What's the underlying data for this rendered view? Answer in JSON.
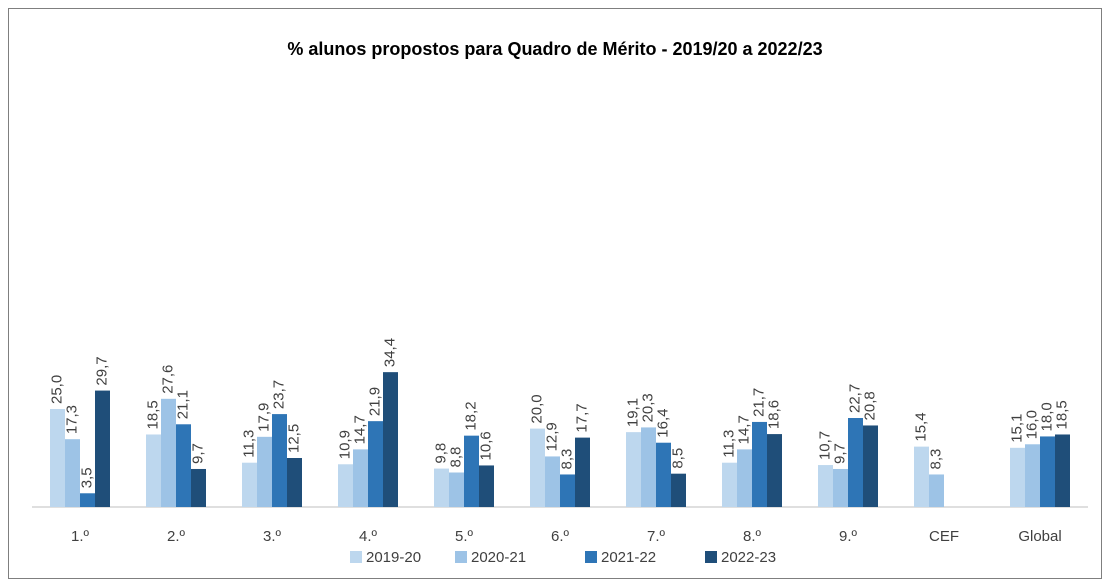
{
  "chart_data": {
    "type": "bar",
    "title": "% alunos propostos para Quadro de Mérito - 2019/20 a 2022/23",
    "categories": [
      "1.º",
      "2.º",
      "3.º",
      "4.º",
      "5.º",
      "6.º",
      "7.º",
      "8.º",
      "9.º",
      "CEF",
      "Global"
    ],
    "ylim": [
      0,
      100
    ],
    "series": [
      {
        "name": "2019-20",
        "color": "#bdd7ee",
        "values": [
          25.0,
          18.5,
          11.3,
          10.9,
          9.8,
          20.0,
          19.1,
          11.3,
          10.7,
          15.4,
          15.1
        ],
        "value_labels": [
          "25,0",
          "18,5",
          "11,3",
          "10,9",
          "9,8",
          "20,0",
          "19,1",
          "11,3",
          "10,7",
          "15,4",
          "15,1"
        ]
      },
      {
        "name": "2020-21",
        "color": "#9dc3e6",
        "values": [
          17.3,
          27.6,
          17.9,
          14.7,
          8.8,
          12.9,
          20.3,
          14.7,
          9.7,
          8.3,
          16.0
        ],
        "value_labels": [
          "17,3",
          "27,6",
          "17,9",
          "14,7",
          "8,8",
          "12,9",
          "20,3",
          "14,7",
          "9,7",
          "8,3",
          "16,0"
        ]
      },
      {
        "name": "2021-22",
        "color": "#2e75b6",
        "values": [
          3.5,
          21.1,
          23.7,
          21.9,
          18.2,
          8.3,
          16.4,
          21.7,
          22.7,
          null,
          18.0
        ],
        "value_labels": [
          "3,5",
          "21,1",
          "23,7",
          "21,9",
          "18,2",
          "8,3",
          "16,4",
          "21,7",
          "22,7",
          null,
          "18,0"
        ]
      },
      {
        "name": "2022-23",
        "color": "#1f4e79",
        "values": [
          29.7,
          9.7,
          12.5,
          34.4,
          10.6,
          17.7,
          8.5,
          18.6,
          20.8,
          null,
          18.5
        ],
        "value_labels": [
          "29,7",
          "9,7",
          "12,5",
          "34,4",
          "10,6",
          "17,7",
          "8,5",
          "18,6",
          "20,8",
          null,
          "18,5"
        ]
      }
    ]
  }
}
